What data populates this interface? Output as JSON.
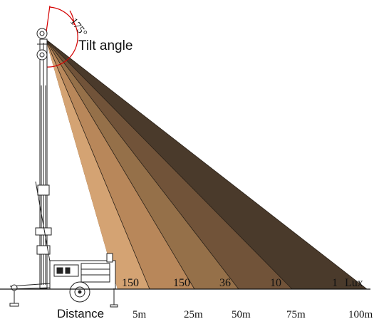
{
  "tilt": {
    "angle_text": "175°",
    "label": "Tilt angle"
  },
  "lux_label": "Lux",
  "distance_label": "Distance",
  "zones": [
    {
      "lux": "150",
      "distance": "5m",
      "color": "#d4a373"
    },
    {
      "lux": "150",
      "distance": "25m",
      "color": "#b8875a"
    },
    {
      "lux": "36",
      "distance": "50m",
      "color": "#957049"
    },
    {
      "lux": "10",
      "distance": "75m",
      "color": "#715339"
    },
    {
      "lux": "1",
      "distance": "100m",
      "color": "#4a3a2b"
    }
  ],
  "colors": {
    "arc": "#d40000",
    "outline": "#222222",
    "ground": "#111111"
  }
}
